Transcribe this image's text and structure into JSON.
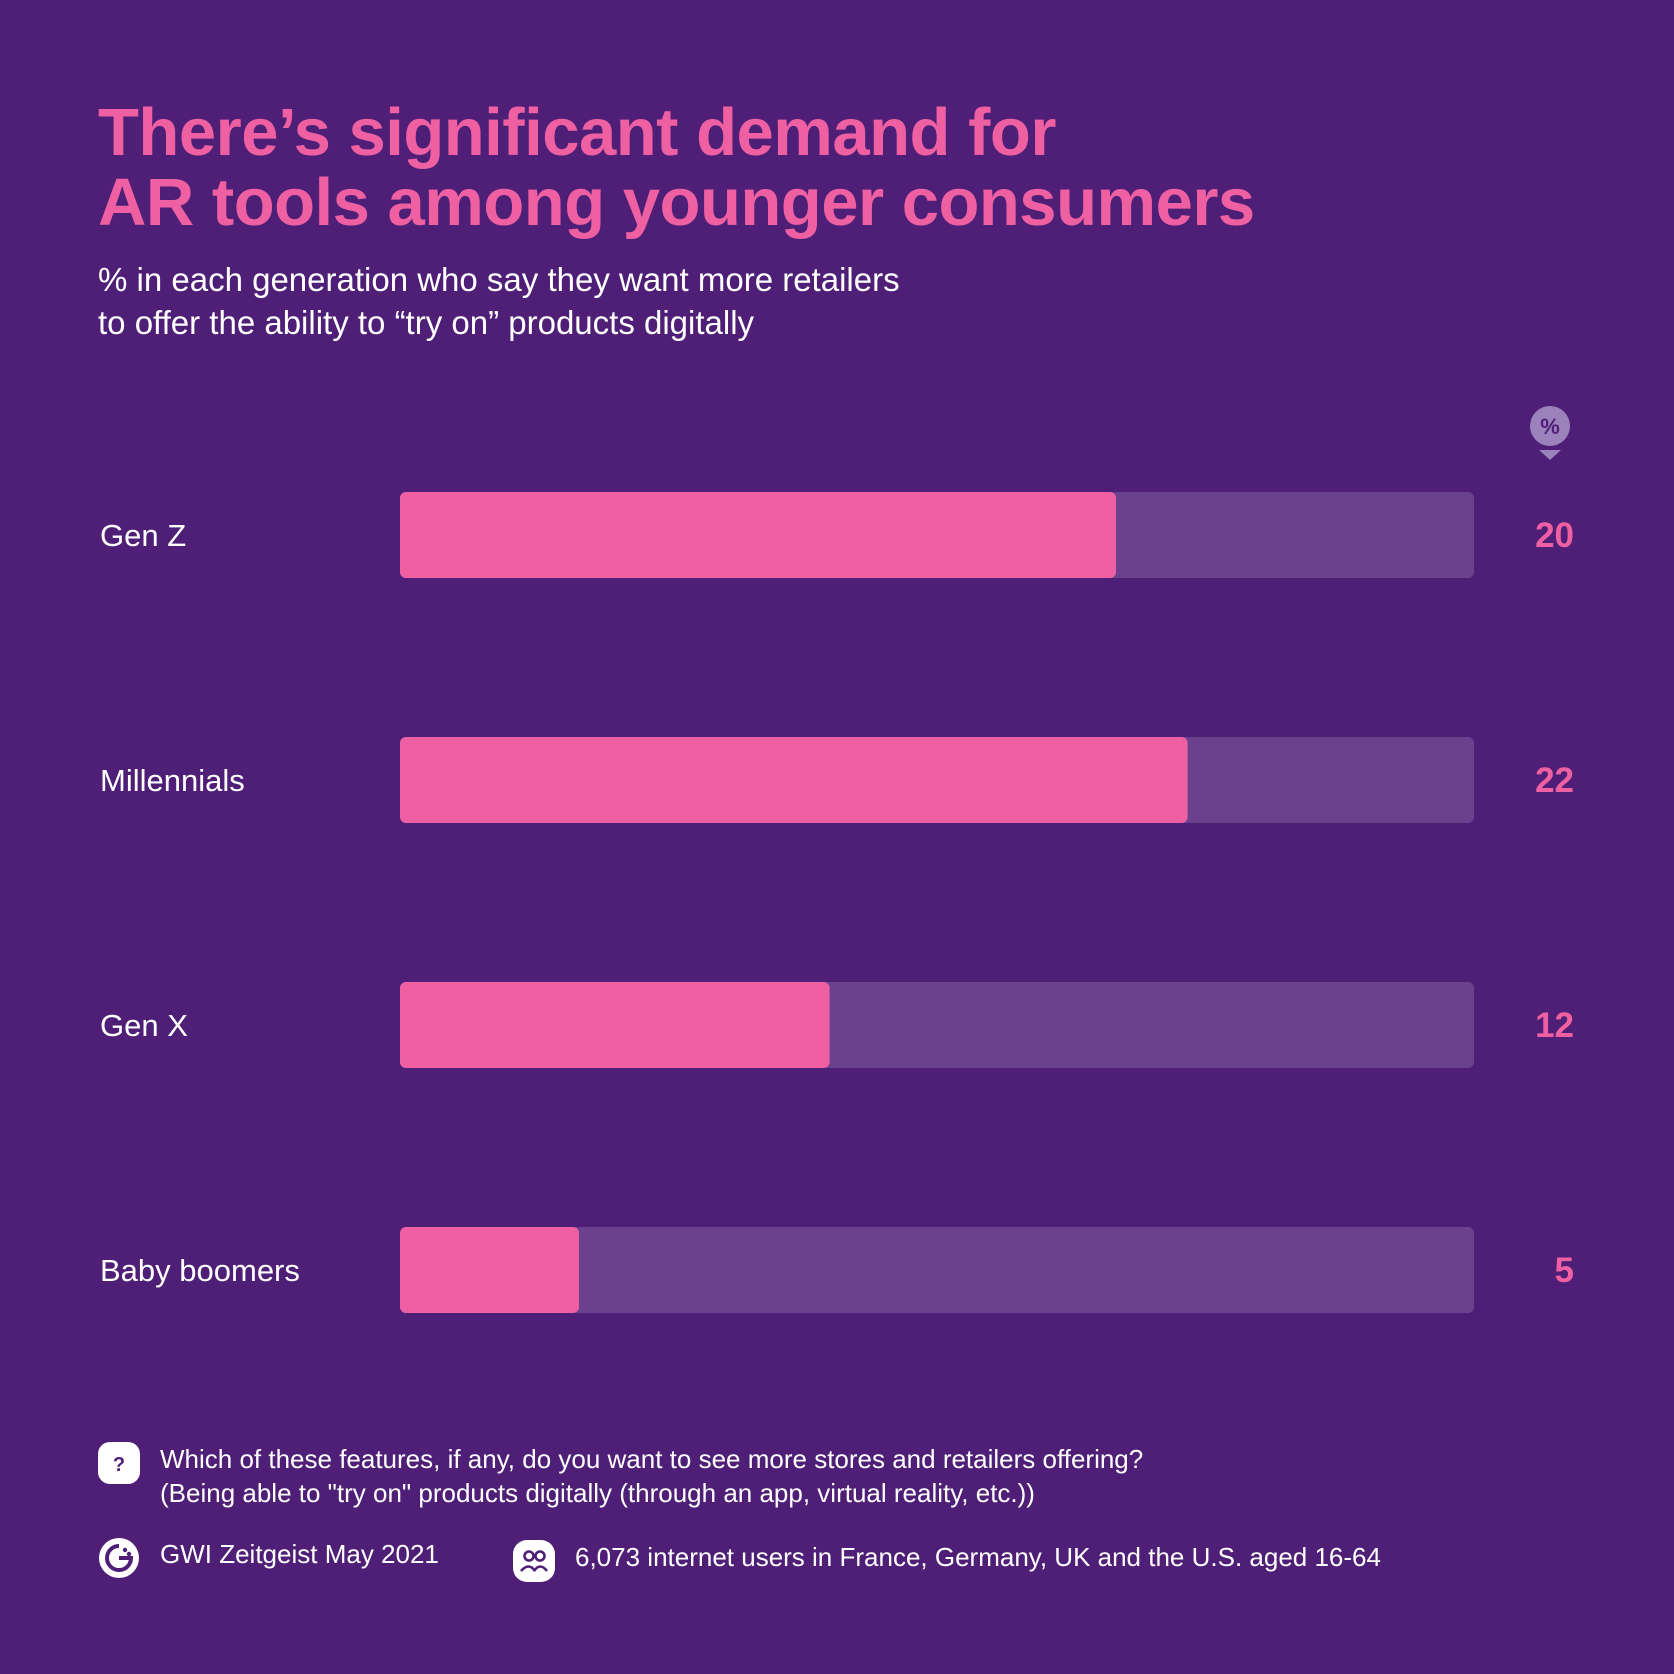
{
  "title_lines": [
    "There’s significant demand for",
    "AR tools among younger consumers"
  ],
  "subtitle_lines": [
    "% in each generation who say they want more retailers",
    "to offer the ability to “try on” products digitally"
  ],
  "unit_badge": "%",
  "colors": {
    "background": "#4f1f77",
    "bar_fill": "#ef60a3",
    "bar_track": "#6b418d",
    "accent": "#ef60a3"
  },
  "chart_data": {
    "type": "bar",
    "orientation": "horizontal",
    "categories": [
      "Gen Z",
      "Millennials",
      "Gen X",
      "Baby boomers"
    ],
    "values": [
      20,
      22,
      12,
      5
    ],
    "xlim": [
      0,
      30
    ],
    "unit": "%",
    "grid": false
  },
  "footer": {
    "question_line1": "Which of these features, if any, do you want to see more stores and retailers offering?",
    "question_line2": "(Being able to \"try on\" products digitally (through an app, virtual reality, etc.))",
    "source": "GWI Zeitgeist May 2021",
    "sample": "6,073 internet users in France, Germany, UK and the U.S. aged 16-64",
    "question_icon": "question-icon",
    "source_icon": "gwi-logo-icon",
    "sample_icon": "users-icon"
  }
}
